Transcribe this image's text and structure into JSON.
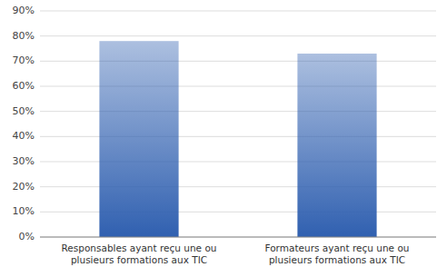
{
  "chart_data": {
    "type": "bar",
    "categories": [
      "Responsables ayant reçu une ou\nplusieurs formations aux TIC",
      "Formateurs ayant reçu une ou\nplusieurs formations aux TIC"
    ],
    "values": [
      0.78,
      0.73
    ],
    "color": "#3060B0",
    "ylim": [
      0,
      0.9
    ],
    "yticks": [
      {
        "value": 0.0,
        "label": "0%"
      },
      {
        "value": 0.1,
        "label": "10%"
      },
      {
        "value": 0.2,
        "label": "20%"
      },
      {
        "value": 0.3,
        "label": "30%"
      },
      {
        "value": 0.4,
        "label": "40%"
      },
      {
        "value": 0.5,
        "label": "50%"
      },
      {
        "value": 0.6,
        "label": "60%"
      },
      {
        "value": 0.7,
        "label": "70%"
      },
      {
        "value": 0.8,
        "label": "80%"
      },
      {
        "value": 0.9,
        "label": "90%"
      }
    ],
    "grid": true
  }
}
